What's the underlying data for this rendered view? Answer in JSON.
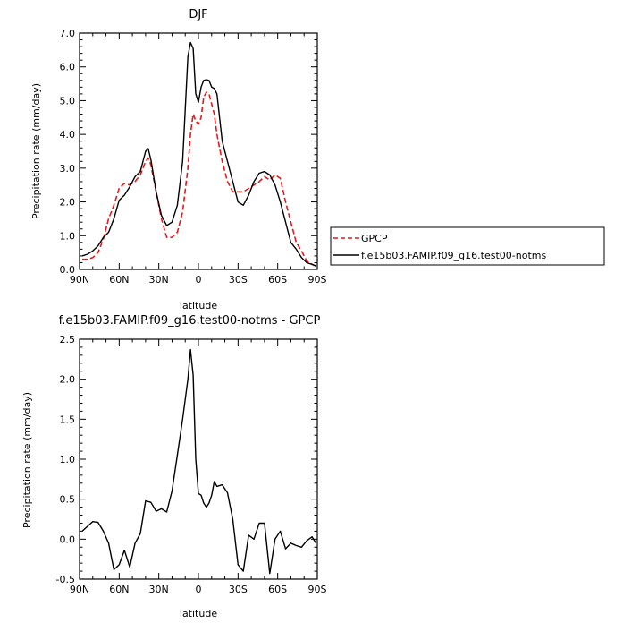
{
  "chart_data": [
    {
      "type": "line",
      "title": "DJF",
      "xlabel": "latitude",
      "ylabel": "Precipitation rate (mm/day)",
      "xlim": [
        90,
        -90
      ],
      "ylim": [
        0,
        7
      ],
      "x_ticks": [
        90,
        60,
        30,
        0,
        -30,
        -60,
        -90
      ],
      "x_tick_labels": [
        "90N",
        "60N",
        "30N",
        "0",
        "30S",
        "60S",
        "90S"
      ],
      "y_ticks": [
        0,
        1,
        2,
        3,
        4,
        5,
        6,
        7
      ],
      "y_tick_labels": [
        "0.0",
        "1.0",
        "2.0",
        "3.0",
        "4.0",
        "5.0",
        "6.0",
        "7.0"
      ],
      "grid": false,
      "legend_position": "outside-right",
      "series": [
        {
          "name": "GPCP",
          "color": "#e41a1c",
          "dash": true,
          "x": [
            88,
            84,
            80,
            76,
            72,
            68,
            64,
            60,
            56,
            52,
            48,
            44,
            40,
            38,
            36,
            32,
            28,
            24,
            20,
            16,
            12,
            8,
            6,
            4,
            2,
            0,
            -2,
            -4,
            -6,
            -8,
            -10,
            -12,
            -14,
            -18,
            -22,
            -26,
            -30,
            -34,
            -38,
            -42,
            -46,
            -50,
            -54,
            -58,
            -62,
            -66,
            -70,
            -74,
            -78,
            -82,
            -86,
            -89
          ],
          "values": [
            0.3,
            0.3,
            0.35,
            0.5,
            0.9,
            1.5,
            1.9,
            2.4,
            2.55,
            2.5,
            2.6,
            2.8,
            3.2,
            3.3,
            3.1,
            2.3,
            1.5,
            0.95,
            0.95,
            1.1,
            1.7,
            3.0,
            4.0,
            4.6,
            4.4,
            4.3,
            4.5,
            5.1,
            5.25,
            5.2,
            4.9,
            4.6,
            4.0,
            3.2,
            2.6,
            2.3,
            2.3,
            2.3,
            2.4,
            2.5,
            2.6,
            2.75,
            2.65,
            2.8,
            2.7,
            2.0,
            1.4,
            0.8,
            0.55,
            0.25,
            0.15,
            0.1
          ]
        },
        {
          "name": "f.e15b03.FAMIP.f09_g16.test00-notms",
          "color": "#000000",
          "dash": false,
          "x": [
            88,
            84,
            80,
            76,
            72,
            68,
            64,
            60,
            56,
            52,
            48,
            44,
            40,
            38,
            36,
            32,
            28,
            24,
            20,
            16,
            12,
            8,
            6,
            4,
            2,
            0,
            -2,
            -4,
            -6,
            -8,
            -10,
            -12,
            -14,
            -18,
            -22,
            -26,
            -30,
            -34,
            -38,
            -42,
            -46,
            -50,
            -54,
            -58,
            -62,
            -66,
            -70,
            -74,
            -78,
            -82,
            -86,
            -89
          ],
          "values": [
            0.4,
            0.45,
            0.55,
            0.7,
            0.95,
            1.1,
            1.5,
            2.05,
            2.2,
            2.45,
            2.75,
            2.9,
            3.5,
            3.58,
            3.25,
            2.3,
            1.6,
            1.3,
            1.4,
            1.9,
            3.2,
            6.3,
            6.72,
            6.55,
            5.2,
            4.95,
            5.4,
            5.6,
            5.62,
            5.6,
            5.4,
            5.36,
            5.2,
            3.8,
            3.2,
            2.6,
            2.0,
            1.9,
            2.2,
            2.6,
            2.85,
            2.9,
            2.8,
            2.5,
            2.0,
            1.4,
            0.8,
            0.6,
            0.35,
            0.2,
            0.15,
            0.1
          ]
        }
      ]
    },
    {
      "type": "line",
      "title": "f.e15b03.FAMIP.f09_g16.test00-notms - GPCP",
      "xlabel": "latitude",
      "ylabel": "Precipitation rate (mm/day)",
      "xlim": [
        90,
        -90
      ],
      "ylim": [
        -0.5,
        2.5
      ],
      "x_ticks": [
        90,
        60,
        30,
        0,
        -30,
        -60,
        -90
      ],
      "x_tick_labels": [
        "90N",
        "60N",
        "30N",
        "0",
        "30S",
        "60S",
        "90S"
      ],
      "y_ticks": [
        -0.5,
        0,
        0.5,
        1,
        1.5,
        2,
        2.5
      ],
      "y_tick_labels": [
        "-0.5",
        "0.0",
        "0.5",
        "1.0",
        "1.5",
        "2.0",
        "2.5"
      ],
      "grid": false,
      "series": [
        {
          "color": "#000000",
          "dash": false,
          "x": [
            88,
            84,
            80,
            76,
            72,
            68,
            64,
            60,
            56,
            52,
            48,
            44,
            40,
            36,
            32,
            28,
            24,
            20,
            16,
            12,
            8,
            6,
            4,
            2,
            0,
            -2,
            -4,
            -6,
            -8,
            -10,
            -12,
            -14,
            -18,
            -22,
            -26,
            -30,
            -34,
            -38,
            -42,
            -46,
            -50,
            -54,
            -58,
            -62,
            -66,
            -70,
            -74,
            -78,
            -82,
            -86,
            -89
          ],
          "values": [
            0.1,
            0.16,
            0.22,
            0.21,
            0.1,
            -0.05,
            -0.38,
            -0.32,
            -0.14,
            -0.35,
            -0.05,
            0.07,
            0.48,
            0.46,
            0.35,
            0.38,
            0.34,
            0.6,
            1.05,
            1.5,
            2.0,
            2.37,
            2.05,
            1.0,
            0.57,
            0.55,
            0.45,
            0.4,
            0.45,
            0.55,
            0.72,
            0.66,
            0.68,
            0.58,
            0.25,
            -0.32,
            -0.4,
            0.05,
            0.0,
            0.2,
            0.2,
            -0.43,
            0.0,
            0.1,
            -0.12,
            -0.05,
            -0.08,
            -0.1,
            -0.02,
            0.03,
            -0.05
          ]
        }
      ]
    }
  ]
}
